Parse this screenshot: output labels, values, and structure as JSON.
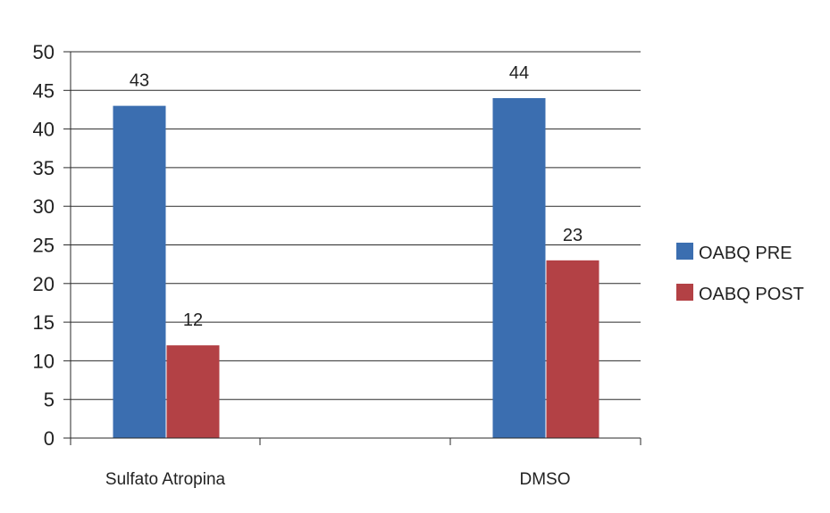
{
  "chart_data": {
    "type": "bar",
    "categories": [
      "Sulfato Atropina",
      "DMSO"
    ],
    "series": [
      {
        "name": "OABQ PRE",
        "values": [
          43,
          44
        ],
        "color": "#3b6eb0"
      },
      {
        "name": "OABQ POST",
        "values": [
          12,
          23
        ],
        "color": "#b34145"
      }
    ],
    "ylim": [
      0,
      50
    ],
    "yticks": [
      0,
      5,
      10,
      15,
      20,
      25,
      30,
      35,
      40,
      45,
      50
    ],
    "grid": true,
    "legend": "right",
    "data_labels": true,
    "title": "",
    "xlabel": "",
    "ylabel": ""
  }
}
